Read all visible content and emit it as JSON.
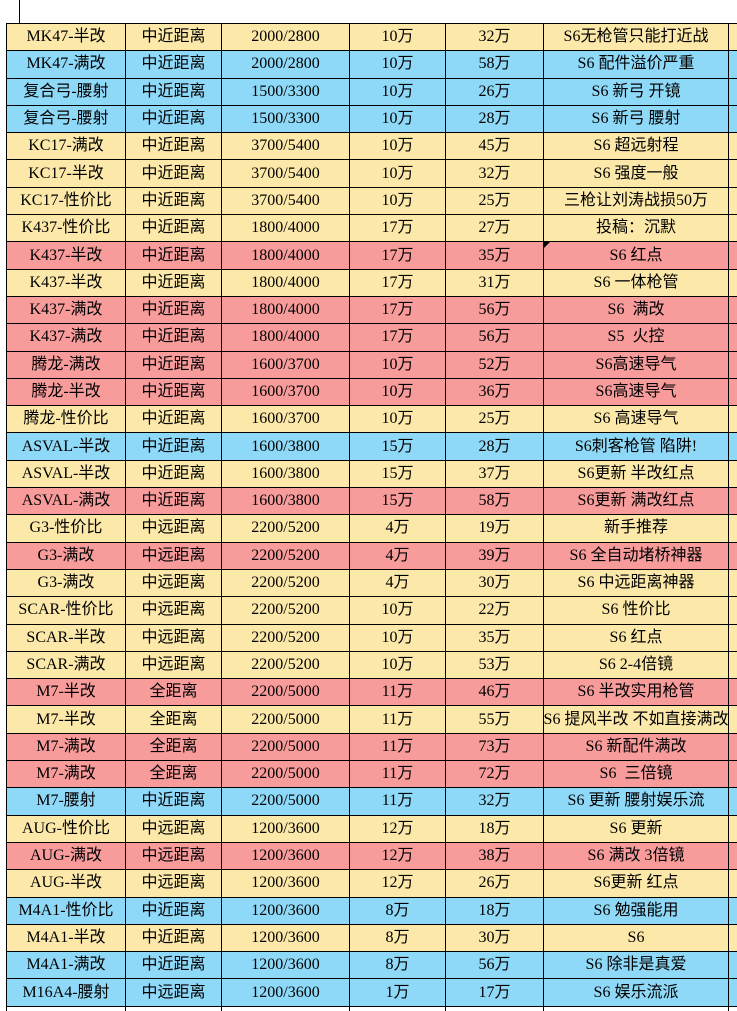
{
  "colors": {
    "yellow": "#FCE9A9",
    "blue": "#8FD9F8",
    "pink": "#F89B9B",
    "white": "#FFFFFF",
    "grid_border": "#000000"
  },
  "table": {
    "cell_keys": [
      "weapon",
      "range",
      "stats",
      "base_price",
      "full_price",
      "note",
      "extra"
    ],
    "rows": [
      {
        "weapon": "MK47-半改",
        "range": "中近距离",
        "stats": "2000/2800",
        "base_price": "10万",
        "full_price": "32万",
        "note": "S6无枪管只能打近战",
        "color": "yellow"
      },
      {
        "weapon": "MK47-满改",
        "range": "中近距离",
        "stats": "2000/2800",
        "base_price": "10万",
        "full_price": "58万",
        "note": "S6 配件溢价严重",
        "color": "blue"
      },
      {
        "weapon": "复合弓-腰射",
        "range": "中近距离",
        "stats": "1500/3300",
        "base_price": "10万",
        "full_price": "26万",
        "note": "S6 新弓 开镜",
        "color": "blue"
      },
      {
        "weapon": "复合弓-腰射",
        "range": "中近距离",
        "stats": "1500/3300",
        "base_price": "10万",
        "full_price": "28万",
        "note": "S6 新弓 腰射",
        "color": "blue"
      },
      {
        "weapon": "KC17-满改",
        "range": "中近距离",
        "stats": "3700/5400",
        "base_price": "10万",
        "full_price": "45万",
        "note": "S6 超远射程",
        "color": "yellow"
      },
      {
        "weapon": "KC17-半改",
        "range": "中近距离",
        "stats": "3700/5400",
        "base_price": "10万",
        "full_price": "32万",
        "note": "S6 强度一般",
        "color": "yellow"
      },
      {
        "weapon": "KC17-性价比",
        "range": "中近距离",
        "stats": "3700/5400",
        "base_price": "10万",
        "full_price": "25万",
        "note": "三枪让刘涛战损50万",
        "color": "yellow"
      },
      {
        "weapon": "K437-性价比",
        "range": "中近距离",
        "stats": "1800/4000",
        "base_price": "17万",
        "full_price": "27万",
        "note": "投稿：沉默",
        "color": "yellow"
      },
      {
        "weapon": "K437-半改",
        "range": "中近距离",
        "stats": "1800/4000",
        "base_price": "17万",
        "full_price": "35万",
        "note": "S6 红点",
        "color": "pink",
        "marker": true
      },
      {
        "weapon": "K437-半改",
        "range": "中近距离",
        "stats": "1800/4000",
        "base_price": "17万",
        "full_price": "31万",
        "note": "S6 一体枪管",
        "color": "yellow"
      },
      {
        "weapon": "K437-满改",
        "range": "中近距离",
        "stats": "1800/4000",
        "base_price": "17万",
        "full_price": "56万",
        "note": "S6  满改",
        "color": "pink"
      },
      {
        "weapon": "K437-满改",
        "range": "中近距离",
        "stats": "1800/4000",
        "base_price": "17万",
        "full_price": "56万",
        "note": "S5  火控",
        "color": "pink"
      },
      {
        "weapon": "腾龙-满改",
        "range": "中近距离",
        "stats": "1600/3700",
        "base_price": "10万",
        "full_price": "52万",
        "note": "S6高速导气",
        "color": "pink"
      },
      {
        "weapon": "腾龙-半改",
        "range": "中近距离",
        "stats": "1600/3700",
        "base_price": "10万",
        "full_price": "36万",
        "note": "S6高速导气",
        "color": "pink"
      },
      {
        "weapon": "腾龙-性价比",
        "range": "中近距离",
        "stats": "1600/3700",
        "base_price": "10万",
        "full_price": "25万",
        "note": "S6 高速导气",
        "color": "yellow"
      },
      {
        "weapon": "ASVAL-半改",
        "range": "中近距离",
        "stats": "1600/3800",
        "base_price": "15万",
        "full_price": "28万",
        "note": "S6刺客枪管 陷阱!",
        "color": "blue"
      },
      {
        "weapon": "ASVAL-半改",
        "range": "中近距离",
        "stats": "1600/3800",
        "base_price": "15万",
        "full_price": "37万",
        "note": "S6更新 半改红点",
        "color": "yellow"
      },
      {
        "weapon": "ASVAL-满改",
        "range": "中近距离",
        "stats": "1600/3800",
        "base_price": "15万",
        "full_price": "58万",
        "note": "S6更新 满改红点",
        "color": "pink"
      },
      {
        "weapon": "G3-性价比",
        "range": "中远距离",
        "stats": "2200/5200",
        "base_price": "4万",
        "full_price": "19万",
        "note": "新手推荐",
        "color": "yellow"
      },
      {
        "weapon": "G3-满改",
        "range": "中远距离",
        "stats": "2200/5200",
        "base_price": "4万",
        "full_price": "39万",
        "note": "S6 全自动堵桥神器",
        "color": "pink"
      },
      {
        "weapon": "G3-满改",
        "range": "中远距离",
        "stats": "2200/5200",
        "base_price": "4万",
        "full_price": "30万",
        "note": "S6 中远距离神器",
        "color": "yellow"
      },
      {
        "weapon": "SCAR-性价比",
        "range": "中远距离",
        "stats": "2200/5200",
        "base_price": "10万",
        "full_price": "22万",
        "note": "S6 性价比",
        "color": "yellow"
      },
      {
        "weapon": "SCAR-半改",
        "range": "中远距离",
        "stats": "2200/5200",
        "base_price": "10万",
        "full_price": "35万",
        "note": "S6 红点",
        "color": "yellow"
      },
      {
        "weapon": "SCAR-满改",
        "range": "中远距离",
        "stats": "2200/5200",
        "base_price": "10万",
        "full_price": "53万",
        "note": "S6 2-4倍镜",
        "color": "yellow"
      },
      {
        "weapon": "M7-半改",
        "range": "全距离",
        "stats": "2200/5000",
        "base_price": "11万",
        "full_price": "46万",
        "note": "S6 半改实用枪管",
        "color": "pink"
      },
      {
        "weapon": "M7-半改",
        "range": "全距离",
        "stats": "2200/5000",
        "base_price": "11万",
        "full_price": "55万",
        "note": "S6 提风半改 不如直接满改",
        "color": "yellow"
      },
      {
        "weapon": "M7-满改",
        "range": "全距离",
        "stats": "2200/5000",
        "base_price": "11万",
        "full_price": "73万",
        "note": "S6 新配件满改",
        "color": "pink"
      },
      {
        "weapon": "M7-满改",
        "range": "全距离",
        "stats": "2200/5000",
        "base_price": "11万",
        "full_price": "72万",
        "note": "S6  三倍镜",
        "color": "pink"
      },
      {
        "weapon": "M7-腰射",
        "range": "中近距离",
        "stats": "2200/5000",
        "base_price": "11万",
        "full_price": "32万",
        "note": "S6 更新 腰射娱乐流",
        "color": "blue"
      },
      {
        "weapon": "AUG-性价比",
        "range": "中远距离",
        "stats": "1200/3600",
        "base_price": "12万",
        "full_price": "18万",
        "note": "S6 更新",
        "color": "yellow"
      },
      {
        "weapon": "AUG-满改",
        "range": "中远距离",
        "stats": "1200/3600",
        "base_price": "12万",
        "full_price": "38万",
        "note": "S6 满改 3倍镜",
        "color": "pink"
      },
      {
        "weapon": "AUG-半改",
        "range": "中远距离",
        "stats": "1200/3600",
        "base_price": "12万",
        "full_price": "26万",
        "note": "S6更新 红点",
        "color": "yellow"
      },
      {
        "weapon": "M4A1-性价比",
        "range": "中近距离",
        "stats": "1200/3600",
        "base_price": "8万",
        "full_price": "18万",
        "note": "S6 勉强能用",
        "color": "blue"
      },
      {
        "weapon": "M4A1-半改",
        "range": "中近距离",
        "stats": "1200/3600",
        "base_price": "8万",
        "full_price": "30万",
        "note": "S6",
        "color": "yellow"
      },
      {
        "weapon": "M4A1-满改",
        "range": "中近距离",
        "stats": "1200/3600",
        "base_price": "8万",
        "full_price": "56万",
        "note": "S6 除非是真爱",
        "color": "blue"
      },
      {
        "weapon": "M16A4-腰射",
        "range": "中远距离",
        "stats": "1200/3600",
        "base_price": "1万",
        "full_price": "17万",
        "note": "S6 娱乐流派",
        "color": "blue"
      }
    ]
  }
}
